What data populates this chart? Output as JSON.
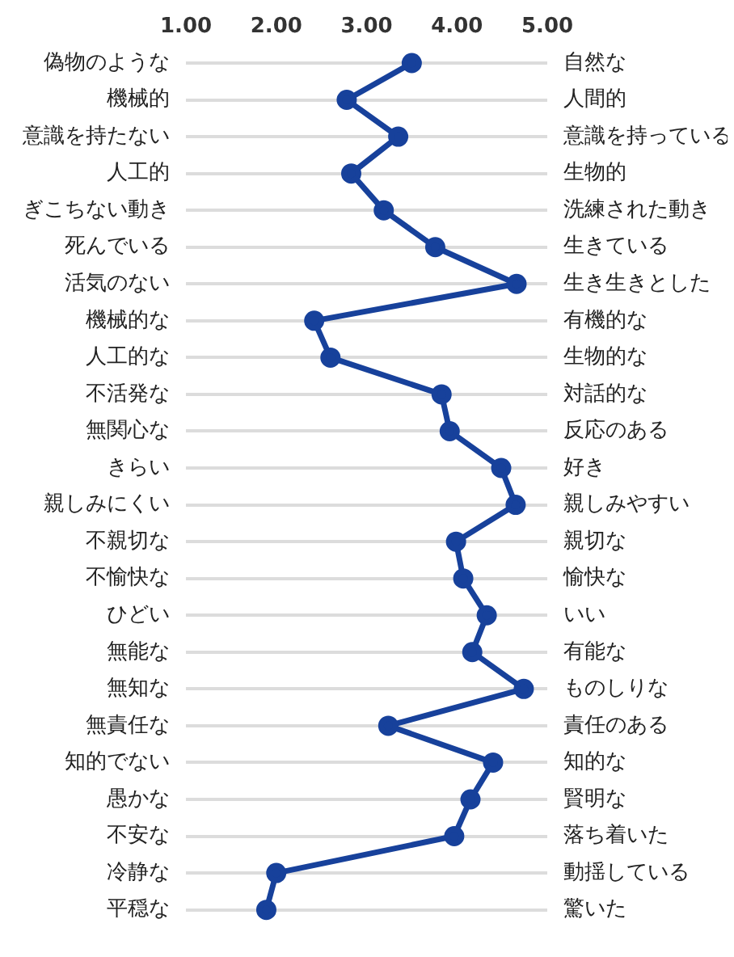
{
  "chart_data": {
    "type": "line",
    "orientation": "horizontal",
    "categories": [
      "偽物のような",
      "機械的",
      "意識を持たない",
      "人工的",
      "ぎこちない動き",
      "死んでいる",
      "活気のない",
      "機械的な",
      "人工的な",
      "不活発な",
      "無関心な",
      "きらい",
      "親しみにくい",
      "不親切な",
      "不愉快な",
      "ひどい",
      "無能な",
      "無知な",
      "無責任な",
      "知的でない",
      "愚かな",
      "不安な",
      "冷静な",
      "平穏な"
    ],
    "y2_categories": [
      "自然な",
      "人間的",
      "意識を持っている",
      "生物的",
      "洗練された動き",
      "生きている",
      "生き生きとした",
      "有機的な",
      "生物的な",
      "対話的な",
      "反応のある",
      "好き",
      "親しみやすい",
      "親切な",
      "愉快な",
      "いい",
      "有能な",
      "ものしりな",
      "責任のある",
      "知的な",
      "賢明な",
      "落ち着いた",
      "動揺している",
      "驚いた"
    ],
    "series": [
      {
        "color": "#17419b",
        "values": [
          3.5,
          2.78,
          3.35,
          2.83,
          3.19,
          3.76,
          4.66,
          2.42,
          2.6,
          3.83,
          3.92,
          4.49,
          4.65,
          3.99,
          4.07,
          4.33,
          4.17,
          4.74,
          3.24,
          4.4,
          4.15,
          3.97,
          2.0,
          1.89
        ]
      }
    ],
    "xlim": [
      1,
      5
    ],
    "xticks": [
      {
        "value": 1,
        "label": "1.00"
      },
      {
        "value": 2,
        "label": "2.00"
      },
      {
        "value": 3,
        "label": "3.00"
      },
      {
        "value": 4,
        "label": "4.00"
      },
      {
        "value": 5,
        "label": "5.00"
      }
    ],
    "grid": "y",
    "legend": false,
    "marker": "circle",
    "line_style": "solid"
  }
}
